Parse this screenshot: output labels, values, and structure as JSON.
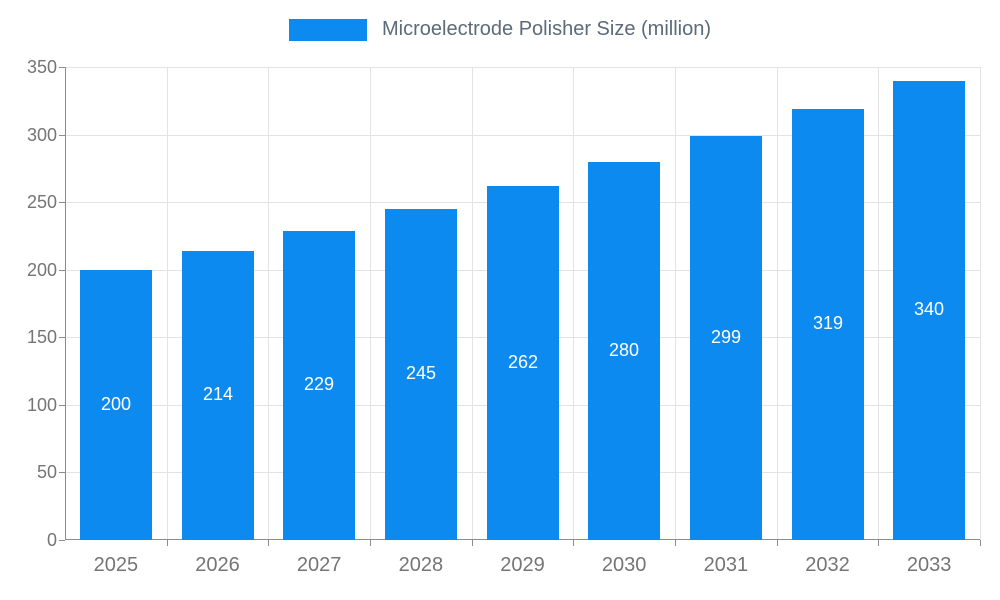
{
  "chart_data": {
    "type": "bar",
    "title": "Microelectrode Polisher Size (million)",
    "categories": [
      "2025",
      "2026",
      "2027",
      "2028",
      "2029",
      "2030",
      "2031",
      "2032",
      "2033"
    ],
    "values": [
      200,
      214,
      229,
      245,
      262,
      280,
      299,
      319,
      340
    ],
    "xlabel": "",
    "ylabel": "",
    "ylim": [
      0,
      350
    ],
    "ytick_step": 50,
    "yticks": [
      0,
      50,
      100,
      150,
      200,
      250,
      300,
      350
    ],
    "grid": true,
    "legend_position": "top",
    "value_labels": "inside-center",
    "colors": {
      "bar": "#0d8af0",
      "grid": "#e3e3e3",
      "axis": "#8c8c8c",
      "tick_text": "#757575",
      "legend_text": "#5b6b79",
      "value_label": "#ffffff",
      "background": "#ffffff"
    }
  }
}
